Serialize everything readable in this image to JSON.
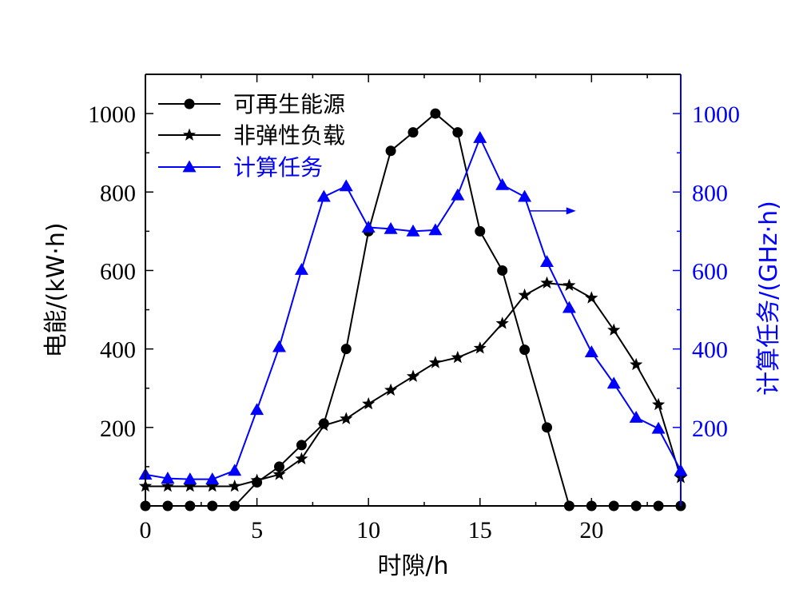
{
  "chart_data": {
    "type": "line",
    "xlabel": "时隙/h",
    "ylabel_left": "电能/(kW·h)",
    "ylabel_right": "计算任务/(GHz·h)",
    "xlim": [
      0,
      24
    ],
    "ylim_left": [
      0,
      1100
    ],
    "ylim_right": [
      0,
      1100
    ],
    "x_ticks": [
      0,
      5,
      10,
      15,
      20
    ],
    "y_ticks_left": [
      200,
      400,
      600,
      800,
      1000
    ],
    "y_ticks_right": [
      200,
      400,
      600,
      800,
      1000
    ],
    "grid": false,
    "legend_position": "top-left",
    "colors": {
      "black": "#000000",
      "blue": "#0000ff"
    },
    "series": [
      {
        "name": "可再生能源",
        "axis": "left",
        "color": "#000000",
        "marker": "circle",
        "x": [
          0,
          1,
          2,
          3,
          4,
          5,
          6,
          7,
          8,
          9,
          10,
          11,
          12,
          13,
          14,
          15,
          16,
          17,
          18,
          19,
          20,
          21,
          22,
          23,
          24
        ],
        "values": [
          0,
          0,
          0,
          0,
          0,
          60,
          100,
          155,
          210,
          400,
          700,
          905,
          952,
          1000,
          952,
          700,
          600,
          398,
          200,
          0,
          0,
          0,
          0,
          0,
          0
        ]
      },
      {
        "name": "非弹性负载",
        "axis": "left",
        "color": "#000000",
        "marker": "star",
        "x": [
          0,
          1,
          2,
          3,
          4,
          5,
          6,
          7,
          8,
          9,
          10,
          11,
          12,
          13,
          14,
          15,
          16,
          17,
          18,
          19,
          20,
          21,
          22,
          23,
          24
        ],
        "values": [
          50,
          50,
          50,
          50,
          50,
          65,
          80,
          120,
          205,
          222,
          260,
          295,
          330,
          365,
          378,
          402,
          465,
          537,
          568,
          562,
          530,
          448,
          360,
          258,
          72
        ]
      },
      {
        "name": "计算任务",
        "axis": "right",
        "color": "#0000ff",
        "marker": "triangle",
        "x": [
          0,
          1,
          2,
          3,
          4,
          5,
          6,
          7,
          8,
          9,
          10,
          11,
          12,
          13,
          14,
          15,
          16,
          17,
          18,
          19,
          20,
          21,
          22,
          23,
          24
        ],
        "values": [
          80,
          70,
          68,
          68,
          90,
          245,
          405,
          602,
          788,
          815,
          710,
          706,
          700,
          703,
          792,
          938,
          818,
          788,
          622,
          505,
          392,
          312,
          225,
          197,
          90
        ]
      }
    ],
    "annotations": [
      {
        "type": "arrow",
        "direction": "right",
        "x": [
          17.2,
          19.3
        ],
        "y": 752,
        "axis": "right",
        "color": "#0000ff"
      }
    ]
  }
}
